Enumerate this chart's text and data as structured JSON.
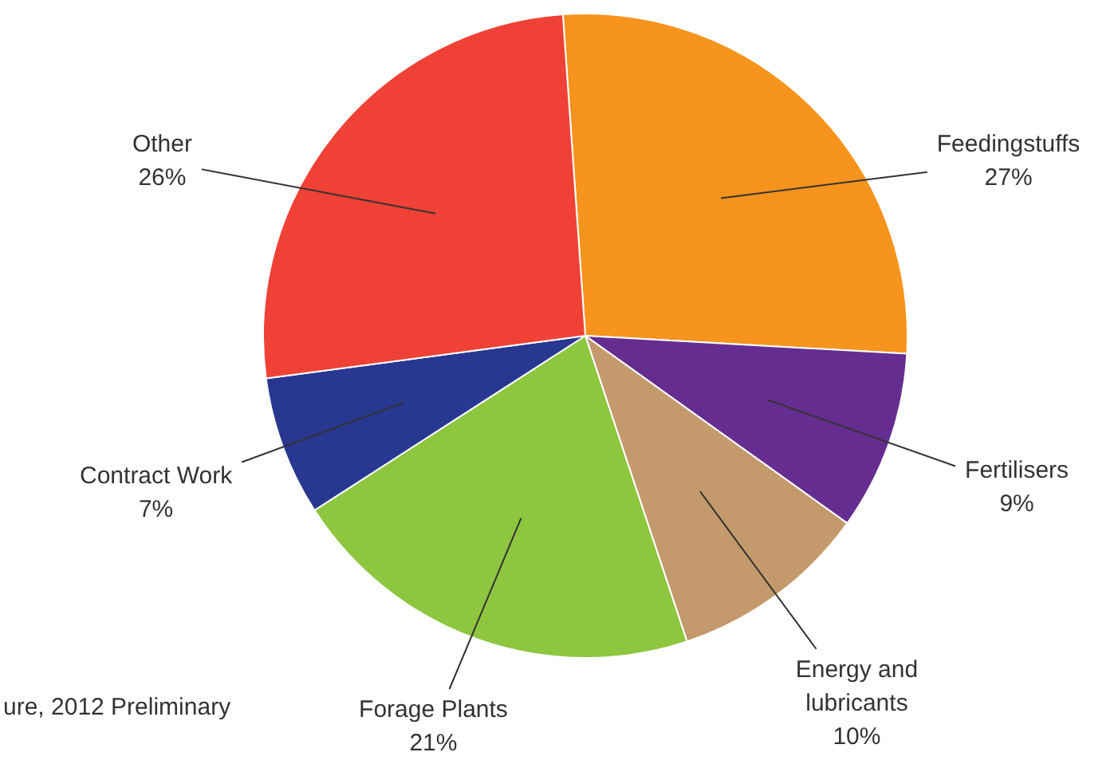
{
  "chart_data": {
    "type": "pie",
    "categories": [
      "Feedingstuffs",
      "Fertilisers",
      "Energy and lubricants",
      "Forage Plants",
      "Contract Work",
      "Other"
    ],
    "values": [
      27,
      9,
      10,
      21,
      7,
      26
    ],
    "value_labels": [
      "27%",
      "9%",
      "10%",
      "21%",
      "7%",
      "26%"
    ],
    "colors": [
      "#f7941d",
      "#662d91",
      "#c49a6c",
      "#8dc63f",
      "#283891",
      "#ef4136"
    ],
    "annotations": [
      "ure, 2012 Preliminary"
    ]
  }
}
